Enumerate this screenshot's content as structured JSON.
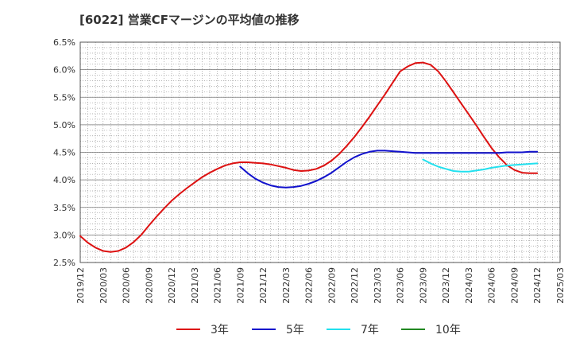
{
  "chart_data": {
    "type": "line",
    "title": "[6022]  営業CFマージンの平均値の推移",
    "xlabel": "",
    "ylabel": "",
    "ylim": [
      2.5,
      6.5
    ],
    "y_ticks": [
      "2.5%",
      "3.0%",
      "3.5%",
      "4.0%",
      "4.5%",
      "5.0%",
      "5.5%",
      "6.0%",
      "6.5%"
    ],
    "x_ticks": [
      "2019/12",
      "2020/03",
      "2020/06",
      "2020/09",
      "2020/12",
      "2021/03",
      "2021/06",
      "2021/09",
      "2021/12",
      "2022/03",
      "2022/06",
      "2022/09",
      "2022/12",
      "2023/03",
      "2023/06",
      "2023/09",
      "2023/12",
      "2024/03",
      "2024/06",
      "2024/09",
      "2024/12",
      "2025/03"
    ],
    "x_range": [
      "2019/12",
      "2025/03"
    ],
    "grid": true,
    "legend_position": "bottom",
    "series": [
      {
        "name": "3年",
        "color": "#dd1111",
        "points": [
          [
            "2019/12",
            2.98
          ],
          [
            "2020/01",
            2.86
          ],
          [
            "2020/02",
            2.77
          ],
          [
            "2020/03",
            2.71
          ],
          [
            "2020/04",
            2.69
          ],
          [
            "2020/05",
            2.71
          ],
          [
            "2020/06",
            2.77
          ],
          [
            "2020/07",
            2.87
          ],
          [
            "2020/08",
            3.0
          ],
          [
            "2020/09",
            3.17
          ],
          [
            "2020/10",
            3.33
          ],
          [
            "2020/11",
            3.48
          ],
          [
            "2020/12",
            3.62
          ],
          [
            "2021/01",
            3.74
          ],
          [
            "2021/02",
            3.85
          ],
          [
            "2021/03",
            3.95
          ],
          [
            "2021/04",
            4.05
          ],
          [
            "2021/05",
            4.13
          ],
          [
            "2021/06",
            4.2
          ],
          [
            "2021/07",
            4.26
          ],
          [
            "2021/08",
            4.3
          ],
          [
            "2021/09",
            4.32
          ],
          [
            "2021/10",
            4.32
          ],
          [
            "2021/11",
            4.31
          ],
          [
            "2021/12",
            4.3
          ],
          [
            "2022/01",
            4.28
          ],
          [
            "2022/02",
            4.25
          ],
          [
            "2022/03",
            4.22
          ],
          [
            "2022/04",
            4.18
          ],
          [
            "2022/05",
            4.16
          ],
          [
            "2022/06",
            4.17
          ],
          [
            "2022/07",
            4.2
          ],
          [
            "2022/08",
            4.26
          ],
          [
            "2022/09",
            4.35
          ],
          [
            "2022/10",
            4.47
          ],
          [
            "2022/11",
            4.62
          ],
          [
            "2022/12",
            4.78
          ],
          [
            "2023/01",
            4.96
          ],
          [
            "2023/02",
            5.15
          ],
          [
            "2023/03",
            5.35
          ],
          [
            "2023/04",
            5.55
          ],
          [
            "2023/05",
            5.76
          ],
          [
            "2023/06",
            5.97
          ],
          [
            "2023/07",
            6.06
          ],
          [
            "2023/08",
            6.12
          ],
          [
            "2023/09",
            6.13
          ],
          [
            "2023/10",
            6.09
          ],
          [
            "2023/11",
            5.97
          ],
          [
            "2023/12",
            5.79
          ],
          [
            "2024/01",
            5.59
          ],
          [
            "2024/02",
            5.39
          ],
          [
            "2024/03",
            5.19
          ],
          [
            "2024/04",
            4.99
          ],
          [
            "2024/05",
            4.78
          ],
          [
            "2024/06",
            4.58
          ],
          [
            "2024/07",
            4.41
          ],
          [
            "2024/08",
            4.27
          ],
          [
            "2024/09",
            4.18
          ],
          [
            "2024/10",
            4.13
          ],
          [
            "2024/11",
            4.12
          ],
          [
            "2024/12",
            4.12
          ]
        ]
      },
      {
        "name": "5年",
        "color": "#1111cc",
        "points": [
          [
            "2021/09",
            4.24
          ],
          [
            "2021/10",
            4.12
          ],
          [
            "2021/11",
            4.02
          ],
          [
            "2021/12",
            3.95
          ],
          [
            "2022/01",
            3.9
          ],
          [
            "2022/02",
            3.87
          ],
          [
            "2022/03",
            3.86
          ],
          [
            "2022/04",
            3.87
          ],
          [
            "2022/05",
            3.89
          ],
          [
            "2022/06",
            3.93
          ],
          [
            "2022/07",
            3.98
          ],
          [
            "2022/08",
            4.05
          ],
          [
            "2022/09",
            4.13
          ],
          [
            "2022/10",
            4.23
          ],
          [
            "2022/11",
            4.33
          ],
          [
            "2022/12",
            4.41
          ],
          [
            "2023/01",
            4.47
          ],
          [
            "2023/02",
            4.51
          ],
          [
            "2023/03",
            4.53
          ],
          [
            "2023/04",
            4.53
          ],
          [
            "2023/05",
            4.52
          ],
          [
            "2023/06",
            4.51
          ],
          [
            "2023/07",
            4.5
          ],
          [
            "2023/08",
            4.49
          ],
          [
            "2023/09",
            4.49
          ],
          [
            "2023/10",
            4.49
          ],
          [
            "2023/11",
            4.49
          ],
          [
            "2023/12",
            4.49
          ],
          [
            "2024/01",
            4.49
          ],
          [
            "2024/02",
            4.49
          ],
          [
            "2024/03",
            4.49
          ],
          [
            "2024/04",
            4.49
          ],
          [
            "2024/05",
            4.49
          ],
          [
            "2024/06",
            4.49
          ],
          [
            "2024/07",
            4.49
          ],
          [
            "2024/08",
            4.5
          ],
          [
            "2024/09",
            4.5
          ],
          [
            "2024/10",
            4.5
          ],
          [
            "2024/11",
            4.51
          ],
          [
            "2024/12",
            4.51
          ]
        ]
      },
      {
        "name": "7年",
        "color": "#22e0ee",
        "points": [
          [
            "2023/09",
            4.37
          ],
          [
            "2023/10",
            4.3
          ],
          [
            "2023/11",
            4.24
          ],
          [
            "2023/12",
            4.2
          ],
          [
            "2024/01",
            4.16
          ],
          [
            "2024/02",
            4.15
          ],
          [
            "2024/03",
            4.15
          ],
          [
            "2024/04",
            4.17
          ],
          [
            "2024/05",
            4.19
          ],
          [
            "2024/06",
            4.22
          ],
          [
            "2024/07",
            4.24
          ],
          [
            "2024/08",
            4.26
          ],
          [
            "2024/09",
            4.27
          ],
          [
            "2024/10",
            4.28
          ],
          [
            "2024/11",
            4.29
          ],
          [
            "2024/12",
            4.3
          ]
        ]
      },
      {
        "name": "10年",
        "color": "#228822",
        "points": []
      }
    ]
  }
}
